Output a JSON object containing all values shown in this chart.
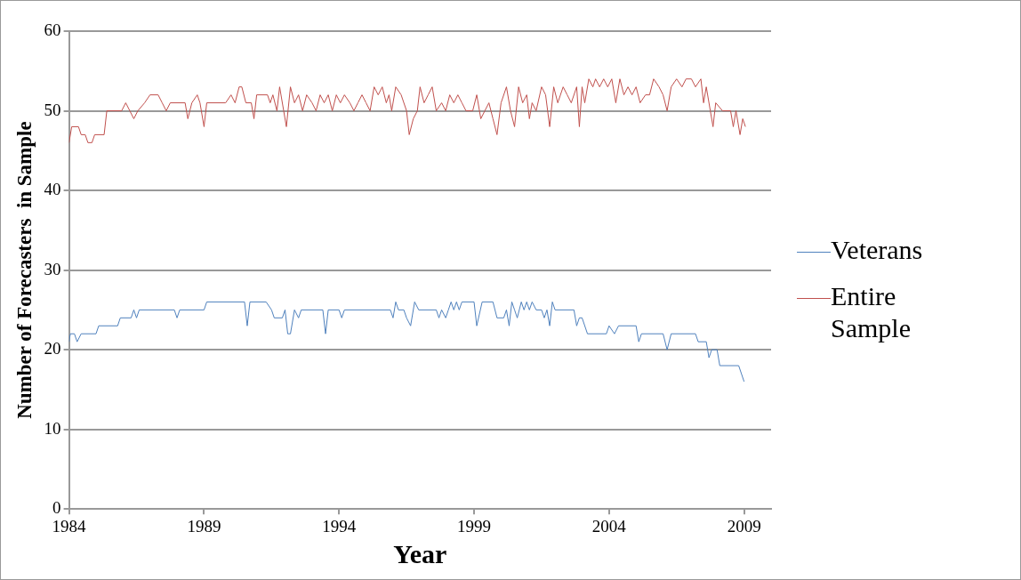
{
  "chart_data": {
    "type": "line",
    "xlabel": "Year",
    "ylabel": "Number of Forecasters  in Sample",
    "xlim": [
      1984,
      2010
    ],
    "xticks": [
      1984,
      1989,
      1994,
      1999,
      2004,
      2009
    ],
    "ylim": [
      0,
      60
    ],
    "yticks": [
      0,
      10,
      20,
      30,
      40,
      50,
      60
    ],
    "grid": "y",
    "legend": "right",
    "marker": "none",
    "line_style": "solid",
    "series": [
      {
        "name": "Veterans",
        "color": "#4f81bd",
        "x": [
          1984.0,
          1984.05,
          1984.2,
          1984.3,
          1984.45,
          1985.0,
          1985.1,
          1985.8,
          1985.9,
          1986.3,
          1986.4,
          1986.5,
          1986.6,
          1987.9,
          1988.0,
          1988.1,
          1989.0,
          1989.1,
          1990.5,
          1990.6,
          1990.7,
          1991.3,
          1991.5,
          1991.6,
          1991.9,
          1992.0,
          1992.1,
          1992.2,
          1992.35,
          1992.5,
          1992.6,
          1993.4,
          1993.5,
          1993.6,
          1994.0,
          1994.1,
          1994.2,
          1995.9,
          1996.0,
          1996.1,
          1996.2,
          1996.4,
          1996.5,
          1996.65,
          1996.8,
          1996.95,
          1997.6,
          1997.7,
          1997.8,
          1997.95,
          1998.05,
          1998.15,
          1998.25,
          1998.35,
          1998.45,
          1998.55,
          1999.0,
          1999.1,
          1999.3,
          1999.7,
          1999.85,
          2000.1,
          2000.2,
          2000.3,
          2000.4,
          2000.5,
          2000.6,
          2000.75,
          2000.85,
          2000.95,
          2001.05,
          2001.15,
          2001.3,
          2001.5,
          2001.6,
          2001.7,
          2001.8,
          2001.9,
          2002.0,
          2002.7,
          2002.8,
          2002.9,
          2003.0,
          2003.2,
          2003.9,
          2004.0,
          2004.2,
          2004.35,
          2005.0,
          2005.1,
          2005.2,
          2006.0,
          2006.15,
          2006.3,
          2007.2,
          2007.3,
          2007.6,
          2007.7,
          2007.8,
          2008.0,
          2008.1,
          2008.8,
          2008.9,
          2009.0
        ],
        "values": [
          21,
          22,
          22,
          21,
          22,
          22,
          23,
          23,
          24,
          24,
          25,
          24,
          25,
          25,
          24,
          25,
          25,
          26,
          26,
          23,
          26,
          26,
          25,
          24,
          24,
          25,
          22,
          22,
          25,
          24,
          25,
          25,
          22,
          25,
          25,
          24,
          25,
          25,
          24,
          26,
          25,
          25,
          24,
          23,
          26,
          25,
          25,
          24,
          25,
          24,
          25,
          26,
          25,
          26,
          25,
          26,
          26,
          23,
          26,
          26,
          24,
          24,
          25,
          23,
          26,
          25,
          24,
          26,
          25,
          26,
          25,
          26,
          25,
          25,
          24,
          25,
          23,
          26,
          25,
          25,
          23,
          24,
          24,
          22,
          22,
          23,
          22,
          23,
          23,
          21,
          22,
          22,
          20,
          22,
          22,
          21,
          21,
          19,
          20,
          20,
          18,
          18,
          17,
          16
        ]
      },
      {
        "name": "Entire Sample",
        "color": "#c0504d",
        "x": [
          1984.0,
          1984.1,
          1984.35,
          1984.45,
          1984.6,
          1984.7,
          1984.85,
          1984.95,
          1985.3,
          1985.4,
          1985.95,
          1986.1,
          1986.25,
          1986.4,
          1986.55,
          1986.8,
          1987.0,
          1987.3,
          1987.45,
          1987.6,
          1987.75,
          1988.3,
          1988.4,
          1988.55,
          1988.75,
          1988.85,
          1989.0,
          1989.1,
          1989.8,
          1990.0,
          1990.15,
          1990.3,
          1990.4,
          1990.55,
          1990.75,
          1990.85,
          1990.95,
          1991.35,
          1991.45,
          1991.55,
          1991.7,
          1991.8,
          1991.95,
          1992.05,
          1992.2,
          1992.35,
          1992.5,
          1992.65,
          1992.8,
          1993.0,
          1993.15,
          1993.3,
          1993.45,
          1993.6,
          1993.75,
          1993.9,
          1994.05,
          1994.2,
          1994.4,
          1994.55,
          1994.7,
          1994.85,
          1995.0,
          1995.15,
          1995.3,
          1995.45,
          1995.6,
          1995.75,
          1995.85,
          1995.95,
          1996.1,
          1996.3,
          1996.5,
          1996.6,
          1996.75,
          1996.9,
          1997.0,
          1997.15,
          1997.3,
          1997.45,
          1997.6,
          1997.8,
          1997.95,
          1998.1,
          1998.25,
          1998.4,
          1998.55,
          1998.7,
          1998.95,
          1999.1,
          1999.25,
          1999.4,
          1999.55,
          1999.7,
          1999.85,
          2000.0,
          2000.2,
          2000.35,
          2000.5,
          2000.65,
          2000.8,
          2000.95,
          2001.05,
          2001.15,
          2001.3,
          2001.5,
          2001.65,
          2001.8,
          2001.95,
          2002.1,
          2002.3,
          2002.45,
          2002.6,
          2002.8,
          2002.9,
          2003.0,
          2003.1,
          2003.25,
          2003.4,
          2003.5,
          2003.65,
          2003.8,
          2003.95,
          2004.1,
          2004.25,
          2004.4,
          2004.55,
          2004.7,
          2004.85,
          2005.0,
          2005.15,
          2005.35,
          2005.5,
          2005.65,
          2005.85,
          2006.0,
          2006.15,
          2006.3,
          2006.5,
          2006.7,
          2006.85,
          2007.05,
          2007.2,
          2007.4,
          2007.5,
          2007.6,
          2007.75,
          2007.85,
          2007.95,
          2008.2,
          2008.5,
          2008.6,
          2008.7,
          2008.85,
          2008.95,
          2009.05
        ],
        "values": [
          46,
          48,
          48,
          47,
          47,
          46,
          46,
          47,
          47,
          50,
          50,
          51,
          50,
          49,
          50,
          51,
          52,
          52,
          51,
          50,
          51,
          51,
          49,
          51,
          52,
          51,
          48,
          51,
          51,
          52,
          51,
          53,
          53,
          51,
          51,
          49,
          52,
          52,
          51,
          52,
          50,
          53,
          50,
          48,
          53,
          51,
          52,
          50,
          52,
          51,
          50,
          52,
          51,
          52,
          50,
          52,
          51,
          52,
          51,
          50,
          51,
          52,
          51,
          50,
          53,
          52,
          53,
          51,
          52,
          50,
          53,
          52,
          50,
          47,
          49,
          50,
          53,
          51,
          52,
          53,
          50,
          51,
          50,
          52,
          51,
          52,
          51,
          50,
          50,
          52,
          49,
          50,
          51,
          49,
          47,
          51,
          53,
          50,
          48,
          53,
          51,
          52,
          49,
          51,
          50,
          53,
          52,
          48,
          53,
          51,
          53,
          52,
          51,
          53,
          48,
          53,
          51,
          54,
          53,
          54,
          53,
          54,
          53,
          54,
          51,
          54,
          52,
          53,
          52,
          53,
          51,
          52,
          52,
          54,
          53,
          52,
          50,
          53,
          54,
          53,
          54,
          54,
          53,
          54,
          51,
          53,
          50,
          48,
          51,
          50,
          50,
          48,
          50,
          47,
          49,
          48
        ]
      }
    ]
  }
}
